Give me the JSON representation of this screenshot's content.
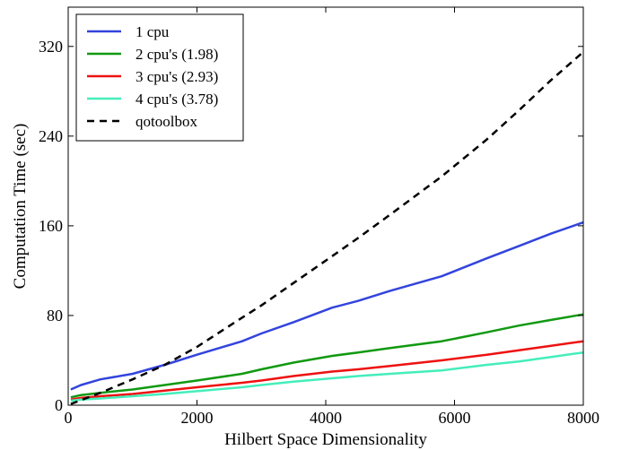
{
  "chart_data": {
    "type": "line",
    "title": "",
    "xlabel": "Hilbert Space Dimensionality",
    "ylabel": "Computation Time (sec)",
    "xlim": [
      0,
      8000
    ],
    "ylim": [
      0,
      355
    ],
    "xticks": [
      0,
      2000,
      4000,
      6000,
      8000
    ],
    "yticks": [
      0,
      80,
      160,
      240,
      320
    ],
    "grid": false,
    "legend_position": "top-left",
    "series": [
      {
        "name": "1 cpu",
        "color": "#3344dd",
        "dash": "solid",
        "x": [
          40,
          200,
          500,
          1000,
          1500,
          2000,
          2700,
          3000,
          3500,
          4100,
          4500,
          5000,
          5800,
          6500,
          7000,
          7500,
          8000
        ],
        "y": [
          14,
          18,
          23,
          28,
          36,
          45,
          57,
          64,
          74,
          87,
          93,
          102,
          115,
          131,
          142,
          153,
          163
        ]
      },
      {
        "name": "2 cpu's (1.98)",
        "color": "#119911",
        "dash": "solid",
        "x": [
          40,
          200,
          500,
          1000,
          1500,
          2000,
          2700,
          3000,
          3500,
          4100,
          4500,
          5000,
          5800,
          6500,
          7000,
          7500,
          8000
        ],
        "y": [
          7,
          9,
          11,
          14,
          18,
          22,
          28,
          32,
          38,
          44,
          47,
          51,
          57,
          65,
          71,
          76,
          81
        ]
      },
      {
        "name": "3 cpu's (2.93)",
        "color": "#ee1111",
        "dash": "solid",
        "x": [
          40,
          200,
          500,
          1000,
          1500,
          2000,
          2700,
          3000,
          3500,
          4100,
          4500,
          5000,
          5800,
          6500,
          7000,
          7500,
          8000
        ],
        "y": [
          5,
          6.5,
          8,
          10,
          13,
          16,
          20,
          22,
          26,
          30,
          32,
          35,
          40,
          45,
          49,
          53,
          57
        ]
      },
      {
        "name": "4 cpu's (3.78)",
        "color": "#44eebb",
        "dash": "solid",
        "x": [
          40,
          200,
          500,
          1000,
          1500,
          2000,
          2700,
          3000,
          3500,
          4100,
          4500,
          5000,
          5800,
          6500,
          7000,
          7500,
          8000
        ],
        "y": [
          4,
          5,
          6,
          8,
          10,
          12.5,
          16,
          18,
          21,
          24,
          26,
          28,
          31,
          36,
          39,
          43,
          47
        ]
      },
      {
        "name": "qotoolbox",
        "color": "#000000",
        "dash": "dashed",
        "x": [
          40,
          500,
          1000,
          1500,
          2000,
          2700,
          3000,
          3500,
          4100,
          4500,
          5000,
          5800,
          6500,
          7000,
          7500,
          8000
        ],
        "y": [
          1,
          11,
          23,
          36,
          52,
          78,
          89,
          109,
          133,
          149,
          170,
          204,
          237,
          263,
          290,
          315
        ]
      }
    ]
  }
}
